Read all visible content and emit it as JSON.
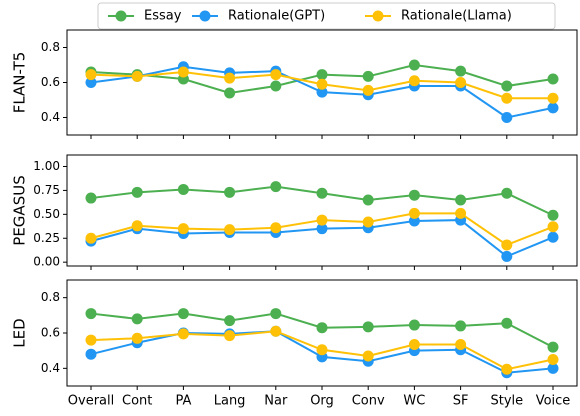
{
  "chart_data": [
    {
      "type": "line",
      "ylabel": "FLAN-T5",
      "ylim": [
        0.3,
        0.9
      ],
      "yticks": [
        0.4,
        0.6,
        0.8
      ],
      "series": [
        {
          "name": "Essay",
          "color": "#4caf50",
          "values": [
            0.66,
            0.645,
            0.62,
            0.54,
            0.58,
            0.645,
            0.635,
            0.7,
            0.665,
            0.58,
            0.62
          ]
        },
        {
          "name": "Rationale(GPT)",
          "color": "#2196f3",
          "values": [
            0.6,
            0.635,
            0.69,
            0.655,
            0.665,
            0.545,
            0.53,
            0.58,
            0.58,
            0.4,
            0.455
          ]
        },
        {
          "name": "Rationale(Llama)",
          "color": "#ffc107",
          "values": [
            0.645,
            0.635,
            0.66,
            0.625,
            0.645,
            0.59,
            0.555,
            0.61,
            0.6,
            0.51,
            0.51
          ]
        }
      ]
    },
    {
      "type": "line",
      "ylabel": "PEGASUS",
      "ylim": [
        -0.04,
        1.12
      ],
      "yticks": [
        {
          "value": 0,
          "label": "0.00"
        },
        0.25,
        {
          "value": 0.5,
          "label": "0.50"
        },
        0.75,
        {
          "value": 1,
          "label": "1.00"
        }
      ],
      "series": [
        {
          "name": "Essay",
          "color": "#4caf50",
          "values": [
            0.67,
            0.73,
            0.76,
            0.73,
            0.79,
            0.72,
            0.65,
            0.7,
            0.65,
            0.72,
            0.49
          ]
        },
        {
          "name": "Rationale(GPT)",
          "color": "#2196f3",
          "values": [
            0.22,
            0.35,
            0.3,
            0.31,
            0.31,
            0.35,
            0.36,
            0.43,
            0.44,
            0.06,
            0.26
          ]
        },
        {
          "name": "Rationale(Llama)",
          "color": "#ffc107",
          "values": [
            0.25,
            0.38,
            0.35,
            0.34,
            0.36,
            0.44,
            0.42,
            0.51,
            0.51,
            0.18,
            0.37
          ]
        }
      ]
    },
    {
      "type": "line",
      "ylabel": "LED",
      "ylim": [
        0.3,
        0.9
      ],
      "yticks": [
        0.4,
        0.6,
        0.8
      ],
      "categories": [
        "Overall",
        "Cont",
        "PA",
        "Lang",
        "Nar",
        "Org",
        "Conv",
        "WC",
        "SF",
        "Style",
        "Voice"
      ],
      "series": [
        {
          "name": "Essay",
          "color": "#4caf50",
          "values": [
            0.71,
            0.68,
            0.71,
            0.67,
            0.71,
            0.63,
            0.635,
            0.645,
            0.64,
            0.655,
            0.52
          ]
        },
        {
          "name": "Rationale(GPT)",
          "color": "#2196f3",
          "values": [
            0.48,
            0.545,
            0.6,
            0.595,
            0.61,
            0.465,
            0.44,
            0.5,
            0.505,
            0.375,
            0.4
          ]
        },
        {
          "name": "Rationale(Llama)",
          "color": "#ffc107",
          "values": [
            0.56,
            0.57,
            0.595,
            0.585,
            0.61,
            0.505,
            0.47,
            0.535,
            0.535,
            0.395,
            0.45
          ]
        }
      ]
    }
  ]
}
